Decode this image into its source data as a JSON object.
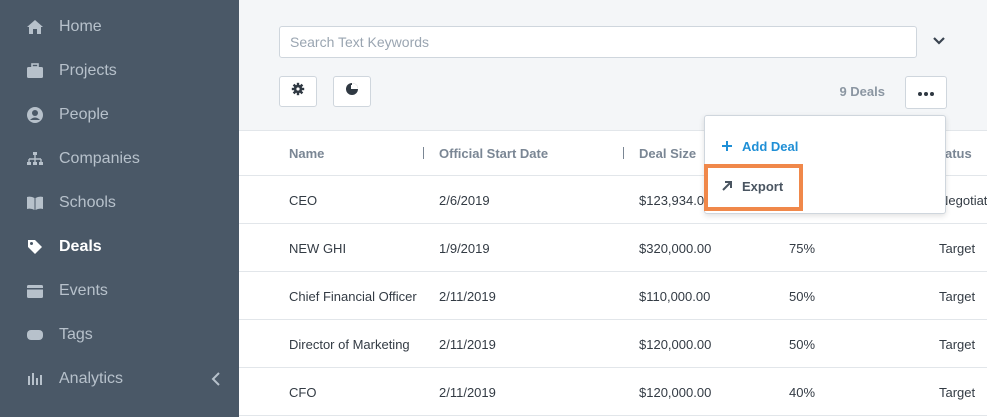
{
  "sidebar": {
    "items": [
      {
        "label": "Home",
        "icon": "home-icon"
      },
      {
        "label": "Projects",
        "icon": "briefcase-icon"
      },
      {
        "label": "People",
        "icon": "person-icon"
      },
      {
        "label": "Companies",
        "icon": "org-chart-icon"
      },
      {
        "label": "Schools",
        "icon": "book-icon"
      },
      {
        "label": "Deals",
        "icon": "tag-icon",
        "active": true
      },
      {
        "label": "Events",
        "icon": "calendar-icon"
      },
      {
        "label": "Tags",
        "icon": "label-icon"
      },
      {
        "label": "Analytics",
        "icon": "bar-chart-icon"
      }
    ]
  },
  "search": {
    "placeholder": "Search Text Keywords",
    "value": ""
  },
  "toolbar": {
    "deal_count": "9 Deals"
  },
  "table": {
    "columns": [
      "Name",
      "Official Start Date",
      "Deal Size",
      "",
      "Status"
    ],
    "rows": [
      {
        "name": "CEO",
        "start_date": "2/6/2019",
        "deal_size": "$123,934.0",
        "probability": "",
        "status": "Negotiat"
      },
      {
        "name": "NEW GHI",
        "start_date": "1/9/2019",
        "deal_size": "$320,000.00",
        "probability": "75%",
        "status": "Target"
      },
      {
        "name": "Chief Financial Officer",
        "start_date": "2/11/2019",
        "deal_size": "$110,000.00",
        "probability": "50%",
        "status": "Target"
      },
      {
        "name": "Director of Marketing",
        "start_date": "2/11/2019",
        "deal_size": "$120,000.00",
        "probability": "50%",
        "status": "Target"
      },
      {
        "name": "CFO",
        "start_date": "2/11/2019",
        "deal_size": "$120,000.00",
        "probability": "40%",
        "status": "Target"
      }
    ]
  },
  "dropdown": {
    "add_label": "Add Deal",
    "export_label": "Export"
  },
  "colors": {
    "sidebar_bg": "#4a5867",
    "accent": "#1f8fd6",
    "highlight": "#f0884a"
  }
}
